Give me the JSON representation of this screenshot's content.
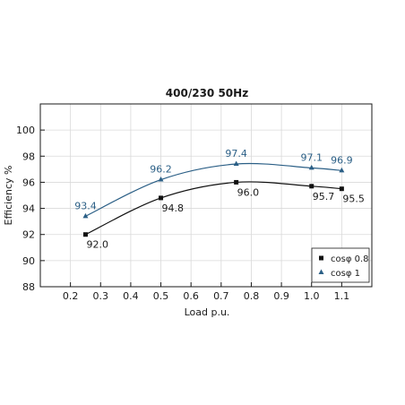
{
  "chart_data": {
    "type": "line",
    "title": "400/230 50Hz",
    "xlabel": "Load p.u.",
    "ylabel": "Efficiency %",
    "xlim": [
      0.1,
      1.2
    ],
    "ylim": [
      88,
      102
    ],
    "x_ticks": [
      "0.2",
      "0.3",
      "0.4",
      "0.5",
      "0.6",
      "0.7",
      "0.8",
      "0.9",
      "1.0",
      "1.1"
    ],
    "y_ticks": [
      "88",
      "90",
      "92",
      "94",
      "96",
      "98",
      "100"
    ],
    "grid": true,
    "legend_position": "bottom-right",
    "series": [
      {
        "name": "cosφ 0.8",
        "color": "#111111",
        "marker": "square",
        "x": [
          0.25,
          0.5,
          0.75,
          1.0,
          1.1
        ],
        "values": [
          92.0,
          94.8,
          96.0,
          95.7,
          95.5
        ],
        "labels": [
          "92.0",
          "94.8",
          "96.0",
          "95.7",
          "95.5"
        ]
      },
      {
        "name": "cosφ 1",
        "color": "#2b5f86",
        "marker": "triangle",
        "x": [
          0.25,
          0.5,
          0.75,
          1.0,
          1.1
        ],
        "values": [
          93.4,
          96.2,
          97.4,
          97.1,
          96.9
        ],
        "labels": [
          "93.4",
          "96.2",
          "97.4",
          "97.1",
          "96.9"
        ]
      }
    ]
  }
}
